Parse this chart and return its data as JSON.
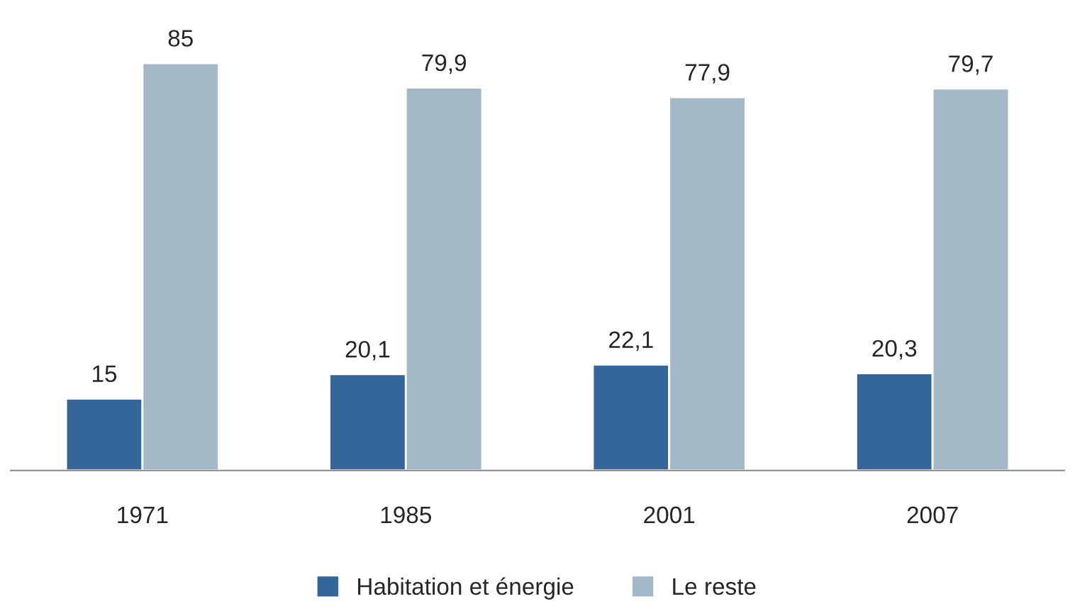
{
  "chart_data": {
    "type": "bar",
    "categories": [
      "1971",
      "1985",
      "2001",
      "2007"
    ],
    "series": [
      {
        "name": "Habitation et énergie",
        "color": "#346699",
        "values": [
          15,
          20.1,
          22.1,
          20.3
        ],
        "value_labels": [
          "15",
          "20,1",
          "22,1",
          "20,3"
        ]
      },
      {
        "name": "Le reste",
        "color": "#a3b9c8",
        "values": [
          85,
          79.9,
          77.9,
          79.7
        ],
        "value_labels": [
          "85",
          "79,9",
          "77,9",
          "79,7"
        ]
      }
    ],
    "legend": "bottom",
    "grid": false
  }
}
